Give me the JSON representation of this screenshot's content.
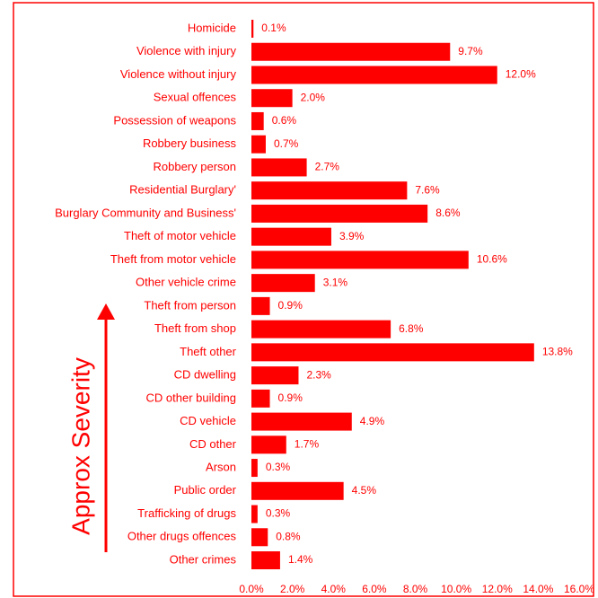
{
  "chart_data": {
    "type": "bar",
    "orientation": "horizontal",
    "color": "#ff0000",
    "annotation": "Approx Severity",
    "categories": [
      "Homicide",
      "Violence with injury",
      "Violence without injury",
      "Sexual offences",
      "Possession of weapons",
      "Robbery business",
      "Robbery person",
      "Residential Burglary'",
      "Burglary Community and Business'",
      "Theft of motor vehicle",
      "Theft from motor vehicle",
      "Other vehicle crime",
      "Theft from person",
      "Theft from shop",
      "Theft other",
      "CD dwelling",
      "CD other building",
      "CD vehicle",
      "CD other",
      "Arson",
      "Public order",
      "Trafficking of drugs",
      "Other drugs offences",
      "Other crimes"
    ],
    "values": [
      0.1,
      9.7,
      12.0,
      2.0,
      0.6,
      0.7,
      2.7,
      7.6,
      8.6,
      3.9,
      10.6,
      3.1,
      0.9,
      6.8,
      13.8,
      2.3,
      0.9,
      4.9,
      1.7,
      0.3,
      4.5,
      0.3,
      0.8,
      1.4
    ],
    "value_labels": [
      "0.1%",
      "9.7%",
      "12.0%",
      "2.0%",
      "0.6%",
      "0.7%",
      "2.7%",
      "7.6%",
      "8.6%",
      "3.9%",
      "10.6%",
      "3.1%",
      "0.9%",
      "6.8%",
      "13.8%",
      "2.3%",
      "0.9%",
      "4.9%",
      "1.7%",
      "0.3%",
      "4.5%",
      "0.3%",
      "0.8%",
      "1.4%"
    ],
    "xlim": [
      0,
      16
    ],
    "xticks": [
      {
        "value": 0,
        "label": "0.0%"
      },
      {
        "value": 2,
        "label": "2.0%"
      },
      {
        "value": 4,
        "label": "4.0%"
      },
      {
        "value": 6,
        "label": "6.0%"
      },
      {
        "value": 8,
        "label": "8.0%"
      },
      {
        "value": 10,
        "label": "10.0%"
      },
      {
        "value": 12,
        "label": "12.0%"
      },
      {
        "value": 14,
        "label": "14.0%"
      },
      {
        "value": 16,
        "label": "16.0%"
      }
    ]
  }
}
